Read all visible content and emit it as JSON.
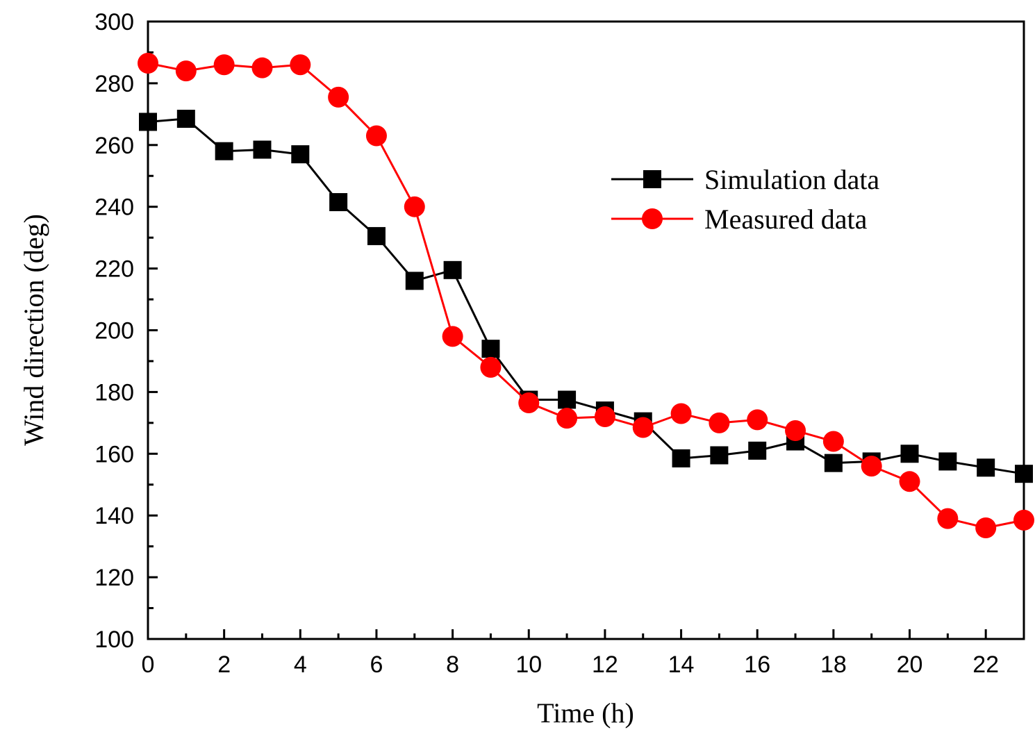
{
  "chart_data": {
    "type": "line",
    "title": "",
    "xlabel": "Time (h)",
    "ylabel": "Wind direction (deg)",
    "xlim": [
      0,
      23
    ],
    "ylim": [
      100,
      300
    ],
    "xticks": [
      0,
      2,
      4,
      6,
      8,
      10,
      12,
      14,
      16,
      18,
      20,
      22
    ],
    "yticks": [
      100,
      120,
      140,
      160,
      180,
      200,
      220,
      240,
      260,
      280,
      300
    ],
    "x_minor_step": 1,
    "grid": false,
    "legend_position": "upper-right",
    "x": [
      0,
      1,
      2,
      3,
      4,
      5,
      6,
      7,
      8,
      9,
      10,
      11,
      12,
      13,
      14,
      15,
      16,
      17,
      18,
      19,
      20,
      21,
      22,
      23
    ],
    "series": [
      {
        "name": "Simulation data",
        "color": "#000000",
        "marker": "square",
        "values": [
          267.5,
          268.5,
          258,
          258.5,
          257,
          241.5,
          230.5,
          216,
          219.5,
          194,
          177.5,
          177.5,
          174,
          170.5,
          158.5,
          159.5,
          161,
          164,
          157,
          157.5,
          160,
          157.5,
          155.5,
          153.5
        ]
      },
      {
        "name": "Measured data",
        "color": "#ff0000",
        "marker": "circle",
        "values": [
          286.5,
          284,
          286,
          285,
          286,
          275.5,
          263,
          240,
          198,
          188,
          176.5,
          171.5,
          172,
          168.5,
          173,
          170,
          171,
          167.5,
          164,
          156,
          151,
          139,
          136,
          138.5
        ]
      }
    ]
  }
}
